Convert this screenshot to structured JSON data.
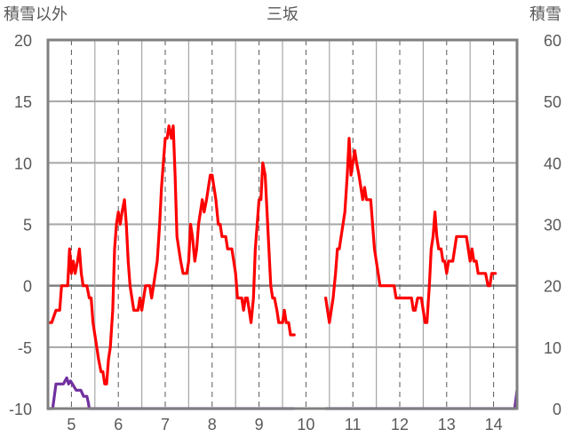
{
  "chart_data": {
    "type": "line",
    "title": "三坂",
    "left_axis_title": "積雪以外",
    "right_axis_title": "積雪",
    "x_ticks": [
      "5",
      "6",
      "7",
      "8",
      "9",
      "10",
      "11",
      "12",
      "13",
      "14"
    ],
    "x_range": [
      4.5,
      14.5
    ],
    "y_left_ticks": [
      "20",
      "15",
      "10",
      "5",
      "0",
      "-5",
      "-10"
    ],
    "y_right_ticks": [
      "60",
      "50",
      "40",
      "30",
      "20",
      "10",
      "0"
    ],
    "ylim_left": [
      -10,
      20
    ],
    "ylim_right": [
      0,
      60
    ],
    "grid": true,
    "series": [
      {
        "axis": "left",
        "color": "#ff0000",
        "segments": [
          [
            [
              4.5,
              -3
            ],
            [
              4.58,
              -3
            ],
            [
              4.67,
              -2
            ],
            [
              4.75,
              -2
            ],
            [
              4.79,
              0
            ],
            [
              4.92,
              0
            ],
            [
              4.96,
              3
            ],
            [
              5.0,
              1
            ],
            [
              5.04,
              2
            ],
            [
              5.08,
              1
            ],
            [
              5.13,
              2
            ],
            [
              5.17,
              3
            ],
            [
              5.21,
              1
            ],
            [
              5.25,
              0
            ],
            [
              5.33,
              0
            ],
            [
              5.38,
              -1
            ],
            [
              5.42,
              -1
            ],
            [
              5.46,
              -3
            ],
            [
              5.5,
              -4
            ],
            [
              5.54,
              -5
            ],
            [
              5.58,
              -6
            ],
            [
              5.63,
              -7
            ],
            [
              5.67,
              -7
            ],
            [
              5.71,
              -8
            ],
            [
              5.75,
              -8
            ],
            [
              5.79,
              -6
            ],
            [
              5.83,
              -5
            ],
            [
              5.88,
              -2
            ],
            [
              5.92,
              3
            ],
            [
              5.96,
              5
            ],
            [
              6.0,
              6
            ],
            [
              6.04,
              5
            ],
            [
              6.08,
              6
            ],
            [
              6.13,
              7
            ],
            [
              6.17,
              5
            ],
            [
              6.21,
              2
            ],
            [
              6.25,
              0
            ],
            [
              6.29,
              -1
            ],
            [
              6.33,
              -2
            ],
            [
              6.42,
              -2
            ],
            [
              6.46,
              -1
            ],
            [
              6.5,
              -2
            ],
            [
              6.54,
              -1
            ],
            [
              6.58,
              0
            ],
            [
              6.67,
              0
            ],
            [
              6.71,
              -1
            ],
            [
              6.75,
              0
            ],
            [
              6.79,
              1
            ],
            [
              6.83,
              2
            ],
            [
              6.88,
              5
            ],
            [
              6.92,
              8
            ],
            [
              6.96,
              10
            ],
            [
              7.0,
              12
            ],
            [
              7.04,
              12
            ],
            [
              7.08,
              13
            ],
            [
              7.13,
              12
            ],
            [
              7.17,
              13
            ],
            [
              7.21,
              9
            ],
            [
              7.25,
              4
            ],
            [
              7.29,
              3
            ],
            [
              7.33,
              2
            ],
            [
              7.38,
              1
            ],
            [
              7.46,
              1
            ],
            [
              7.5,
              2
            ],
            [
              7.54,
              5
            ],
            [
              7.58,
              4
            ],
            [
              7.63,
              2
            ],
            [
              7.67,
              3
            ],
            [
              7.71,
              5
            ],
            [
              7.75,
              6
            ],
            [
              7.79,
              7
            ],
            [
              7.83,
              6
            ],
            [
              7.88,
              7
            ],
            [
              7.92,
              8
            ],
            [
              7.96,
              9
            ],
            [
              8.0,
              9
            ],
            [
              8.04,
              8
            ],
            [
              8.08,
              7
            ],
            [
              8.13,
              5
            ],
            [
              8.17,
              5
            ],
            [
              8.21,
              4
            ],
            [
              8.29,
              4
            ],
            [
              8.33,
              3
            ],
            [
              8.42,
              3
            ],
            [
              8.46,
              2
            ],
            [
              8.5,
              1
            ],
            [
              8.54,
              -1
            ],
            [
              8.63,
              -1
            ],
            [
              8.67,
              -2
            ],
            [
              8.71,
              -1
            ],
            [
              8.75,
              -1
            ],
            [
              8.79,
              -2
            ],
            [
              8.83,
              -3
            ],
            [
              8.88,
              -1
            ],
            [
              8.92,
              3
            ],
            [
              8.96,
              5
            ],
            [
              9.0,
              7
            ],
            [
              9.04,
              7
            ],
            [
              9.08,
              10
            ],
            [
              9.13,
              9
            ],
            [
              9.17,
              6
            ],
            [
              9.21,
              3
            ],
            [
              9.25,
              0
            ],
            [
              9.29,
              -1
            ],
            [
              9.33,
              -1
            ],
            [
              9.38,
              -2
            ],
            [
              9.42,
              -3
            ],
            [
              9.5,
              -3
            ],
            [
              9.54,
              -2
            ],
            [
              9.58,
              -3
            ],
            [
              9.63,
              -3
            ],
            [
              9.67,
              -4
            ],
            [
              9.75,
              -4
            ]
          ],
          [
            [
              10.42,
              -1
            ],
            [
              10.46,
              -2
            ],
            [
              10.5,
              -3
            ],
            [
              10.54,
              -2
            ],
            [
              10.58,
              -1
            ],
            [
              10.63,
              1
            ],
            [
              10.67,
              3
            ],
            [
              10.71,
              3
            ],
            [
              10.75,
              4
            ],
            [
              10.79,
              5
            ],
            [
              10.83,
              6
            ],
            [
              10.88,
              9
            ],
            [
              10.92,
              12
            ],
            [
              10.96,
              9
            ],
            [
              11.0,
              10
            ],
            [
              11.04,
              11
            ],
            [
              11.08,
              10
            ],
            [
              11.13,
              9
            ],
            [
              11.17,
              8
            ],
            [
              11.21,
              7
            ],
            [
              11.25,
              8
            ],
            [
              11.29,
              7
            ],
            [
              11.38,
              7
            ],
            [
              11.42,
              5
            ],
            [
              11.46,
              3
            ],
            [
              11.5,
              2
            ],
            [
              11.54,
              1
            ],
            [
              11.58,
              0
            ],
            [
              11.88,
              0
            ],
            [
              11.92,
              -1
            ],
            [
              12.25,
              -1
            ],
            [
              12.29,
              -2
            ],
            [
              12.33,
              -2
            ],
            [
              12.38,
              -1
            ],
            [
              12.46,
              -1
            ],
            [
              12.5,
              -2
            ],
            [
              12.54,
              -3
            ],
            [
              12.58,
              -3
            ],
            [
              12.63,
              0
            ],
            [
              12.67,
              3
            ],
            [
              12.71,
              4
            ],
            [
              12.75,
              6
            ],
            [
              12.79,
              4
            ],
            [
              12.83,
              3
            ],
            [
              12.88,
              3
            ],
            [
              12.92,
              2
            ],
            [
              12.96,
              2
            ],
            [
              13.0,
              1
            ],
            [
              13.04,
              2
            ],
            [
              13.13,
              2
            ],
            [
              13.17,
              3
            ],
            [
              13.21,
              4
            ],
            [
              13.42,
              4
            ],
            [
              13.46,
              3
            ],
            [
              13.5,
              2
            ],
            [
              13.54,
              3
            ],
            [
              13.58,
              2
            ],
            [
              13.63,
              2
            ],
            [
              13.67,
              1
            ],
            [
              13.83,
              1
            ],
            [
              13.88,
              0
            ],
            [
              13.92,
              0
            ],
            [
              13.96,
              1
            ],
            [
              14.04,
              1
            ]
          ]
        ]
      },
      {
        "axis": "right",
        "color": "#7030a0",
        "segments": [
          [
            [
              4.5,
              0
            ],
            [
              4.6,
              0
            ],
            [
              4.67,
              4
            ],
            [
              4.83,
              4
            ],
            [
              4.9,
              5
            ],
            [
              4.94,
              4
            ],
            [
              4.98,
              4.5
            ],
            [
              5.02,
              4
            ],
            [
              5.1,
              3
            ],
            [
              5.2,
              3
            ],
            [
              5.26,
              2
            ],
            [
              5.33,
              2
            ],
            [
              5.36,
              1
            ],
            [
              5.38,
              0
            ],
            [
              9.75,
              0
            ]
          ],
          [
            [
              10.42,
              0
            ],
            [
              14.45,
              0
            ],
            [
              14.5,
              3
            ]
          ]
        ]
      }
    ]
  }
}
